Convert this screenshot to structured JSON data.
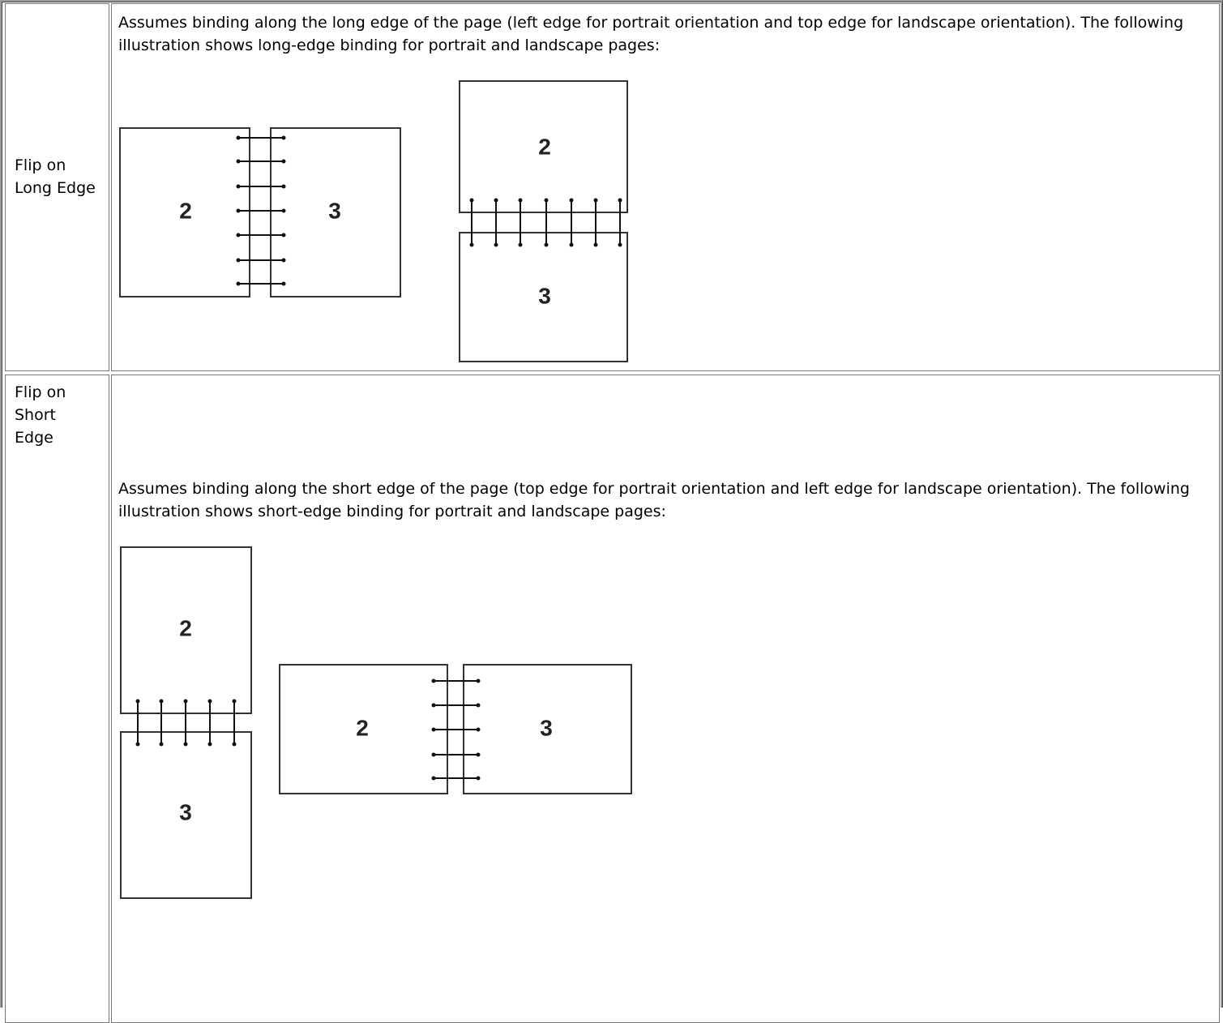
{
  "rows": [
    {
      "label": "Flip on Long Edge",
      "description": "Assumes binding along the long edge of the page (left edge for portrait orientation and top edge for landscape orientation). The following illustration shows long-edge binding for portrait and landscape pages:",
      "figures": [
        {
          "pages": [
            "2",
            "3"
          ]
        },
        {
          "pages": [
            "2",
            "3"
          ]
        }
      ]
    },
    {
      "label": "Flip on Short Edge",
      "description": "Assumes binding along the short edge of the page (top edge for portrait orientation and left edge for landscape orientation). The following illustration shows short-edge binding for portrait and landscape pages:",
      "figures": [
        {
          "pages": [
            "2",
            "3"
          ]
        },
        {
          "pages": [
            "2",
            "3"
          ]
        }
      ]
    }
  ]
}
